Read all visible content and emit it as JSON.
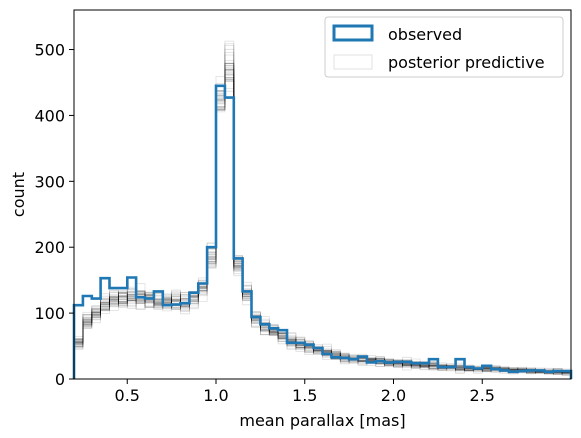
{
  "chart_data": {
    "type": "histogram",
    "xlabel": "mean parallax [mas]",
    "ylabel": "count",
    "xlim": [
      0.2,
      3.0
    ],
    "ylim": [
      0,
      560
    ],
    "xticks": [
      0.5,
      1.0,
      1.5,
      2.0,
      2.5
    ],
    "xtick_labels": [
      "0.5",
      "1.0",
      "1.5",
      "2.0",
      "2.5"
    ],
    "yticks": [
      0,
      100,
      200,
      300,
      400,
      500
    ],
    "ytick_labels": [
      "0",
      "100",
      "200",
      "300",
      "400",
      "500"
    ],
    "bin_edges": [
      0.2,
      0.25,
      0.3,
      0.35,
      0.4,
      0.45,
      0.5,
      0.55,
      0.6,
      0.65,
      0.7,
      0.75,
      0.8,
      0.85,
      0.9,
      0.95,
      1.0,
      1.05,
      1.1,
      1.15,
      1.2,
      1.25,
      1.3,
      1.35,
      1.4,
      1.45,
      1.5,
      1.55,
      1.6,
      1.65,
      1.7,
      1.75,
      1.8,
      1.85,
      1.9,
      1.95,
      2.0,
      2.05,
      2.1,
      2.15,
      2.2,
      2.25,
      2.3,
      2.35,
      2.4,
      2.45,
      2.5,
      2.55,
      2.6,
      2.65,
      2.7,
      2.75,
      2.8,
      2.85,
      2.9,
      2.95,
      3.0
    ],
    "legend_position": "top-right",
    "series": [
      {
        "name": "observed",
        "color": "#1f77b4",
        "values": [
          112,
          126,
          122,
          153,
          138,
          138,
          154,
          124,
          122,
          133,
          112,
          113,
          115,
          131,
          145,
          200,
          445,
          427,
          183,
          133,
          94,
          83,
          77,
          74,
          55,
          55,
          52,
          47,
          38,
          33,
          32,
          30,
          34,
          25,
          27,
          25,
          26,
          26,
          24,
          24,
          30,
          18,
          18,
          30,
          18,
          16,
          20,
          15,
          13,
          11,
          12,
          13,
          13,
          11,
          12,
          12
        ]
      },
      {
        "name": "posterior predictive",
        "color": "#000000",
        "mean": [
          55,
          85,
          100,
          112,
          120,
          124,
          126,
          124,
          121,
          119,
          117,
          117,
          118,
          123,
          138,
          185,
          425,
          470,
          175,
          128,
          92,
          80,
          73,
          67,
          58,
          53,
          49,
          45,
          40,
          36,
          33,
          31,
          30,
          28,
          26,
          25,
          24,
          23,
          22,
          21,
          20,
          19,
          18,
          17,
          16,
          16,
          15,
          15,
          14,
          13,
          13,
          12,
          12,
          11,
          11,
          10
        ],
        "draws": 40
      }
    ]
  }
}
